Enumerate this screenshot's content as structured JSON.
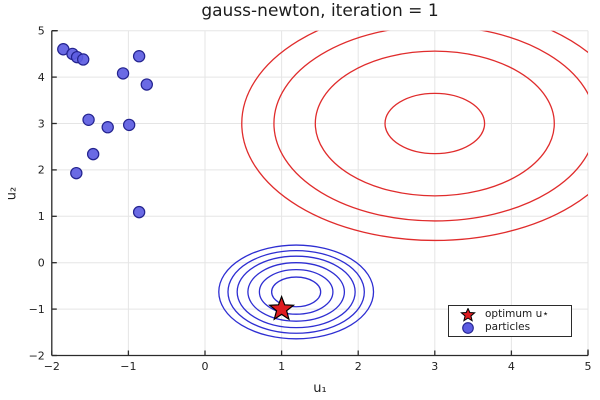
{
  "chart_data": {
    "type": "scatter",
    "title": "gauss-newton, iteration = 1",
    "xlabel": "u₁",
    "ylabel": "u₂",
    "xlim": [
      -2,
      5
    ],
    "ylim": [
      -2,
      5
    ],
    "grid": true,
    "xticks": [
      -2,
      -1,
      0,
      1,
      2,
      3,
      4,
      5
    ],
    "xtick_labels": [
      "−2",
      "−1",
      "0",
      "1",
      "2",
      "3",
      "4",
      "5"
    ],
    "yticks": [
      -2,
      -1,
      0,
      1,
      2,
      3,
      4,
      5
    ],
    "ytick_labels": [
      "−2",
      "−1",
      "0",
      "1",
      "2",
      "3",
      "4",
      "5"
    ],
    "series": [
      {
        "name": "target-contours",
        "kind": "contour",
        "color": "#e02c2c",
        "center": [
          3.0,
          3.0
        ],
        "radii": [
          0.65,
          1.56,
          2.1,
          2.52
        ]
      },
      {
        "name": "approximation-contours",
        "kind": "contour",
        "color": "#2e2ed2",
        "center": [
          1.19,
          -0.63
        ],
        "radii": [
          0.32,
          0.48,
          0.63,
          0.77,
          0.89,
          1.01
        ]
      },
      {
        "name": "optimum u⋆",
        "kind": "star",
        "color": "#de1b20",
        "edge": "#000000",
        "points": [
          [
            1.0,
            -1.0
          ]
        ]
      },
      {
        "name": "particles",
        "kind": "scatter",
        "color": "#5d5de2",
        "edge": "#23238f",
        "points": [
          [
            -1.85,
            4.6
          ],
          [
            -1.73,
            4.5
          ],
          [
            -1.67,
            4.43
          ],
          [
            -1.59,
            4.38
          ],
          [
            -0.86,
            4.45
          ],
          [
            -1.07,
            4.08
          ],
          [
            -0.76,
            3.84
          ],
          [
            -1.52,
            3.08
          ],
          [
            -1.27,
            2.92
          ],
          [
            -0.99,
            2.97
          ],
          [
            -1.46,
            2.34
          ],
          [
            -1.68,
            1.93
          ],
          [
            -0.86,
            1.09
          ]
        ]
      }
    ],
    "legend": {
      "position": "bottom-right",
      "entries": [
        {
          "marker": "star",
          "label": "optimum u⋆"
        },
        {
          "marker": "circle",
          "label": "particles"
        }
      ]
    },
    "colors": {
      "grid": "#e5e5e5",
      "axis": "#2b2b2b",
      "background": "#ffffff"
    }
  }
}
